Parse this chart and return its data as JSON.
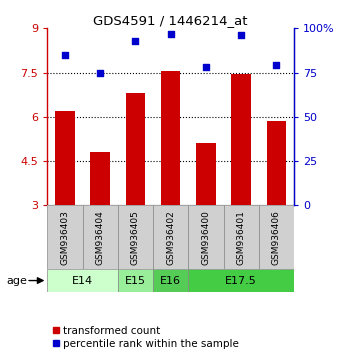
{
  "title": "GDS4591 / 1446214_at",
  "samples": [
    "GSM936403",
    "GSM936404",
    "GSM936405",
    "GSM936402",
    "GSM936400",
    "GSM936401",
    "GSM936406"
  ],
  "bar_values": [
    6.2,
    4.8,
    6.8,
    7.55,
    5.1,
    7.45,
    5.85
  ],
  "scatter_values": [
    85,
    75,
    93,
    97,
    78,
    96,
    79
  ],
  "ylim_left": [
    3,
    9
  ],
  "ylim_right": [
    0,
    100
  ],
  "yticks_left": [
    3,
    4.5,
    6,
    7.5,
    9
  ],
  "yticks_right": [
    0,
    25,
    50,
    75,
    100
  ],
  "ytick_labels_left": [
    "3",
    "4.5",
    "6",
    "7.5",
    "9"
  ],
  "ytick_labels_right": [
    "0",
    "25",
    "50",
    "75",
    "100%"
  ],
  "bar_color": "#cc0000",
  "scatter_color": "#0000cc",
  "bar_bottom": 3,
  "dotted_lines": [
    4.5,
    6,
    7.5
  ],
  "age_groups": [
    {
      "label": "E14",
      "start": 0,
      "end": 2,
      "color": "#ccffcc"
    },
    {
      "label": "E15",
      "start": 2,
      "end": 3,
      "color": "#99ee99"
    },
    {
      "label": "E16",
      "start": 3,
      "end": 4,
      "color": "#55cc55"
    },
    {
      "label": "E17.5",
      "start": 4,
      "end": 7,
      "color": "#44cc44"
    }
  ],
  "sample_box_color": "#d0d0d0",
  "legend_bar_label": "transformed count",
  "legend_scatter_label": "percentile rank within the sample",
  "background_color": "#ffffff"
}
